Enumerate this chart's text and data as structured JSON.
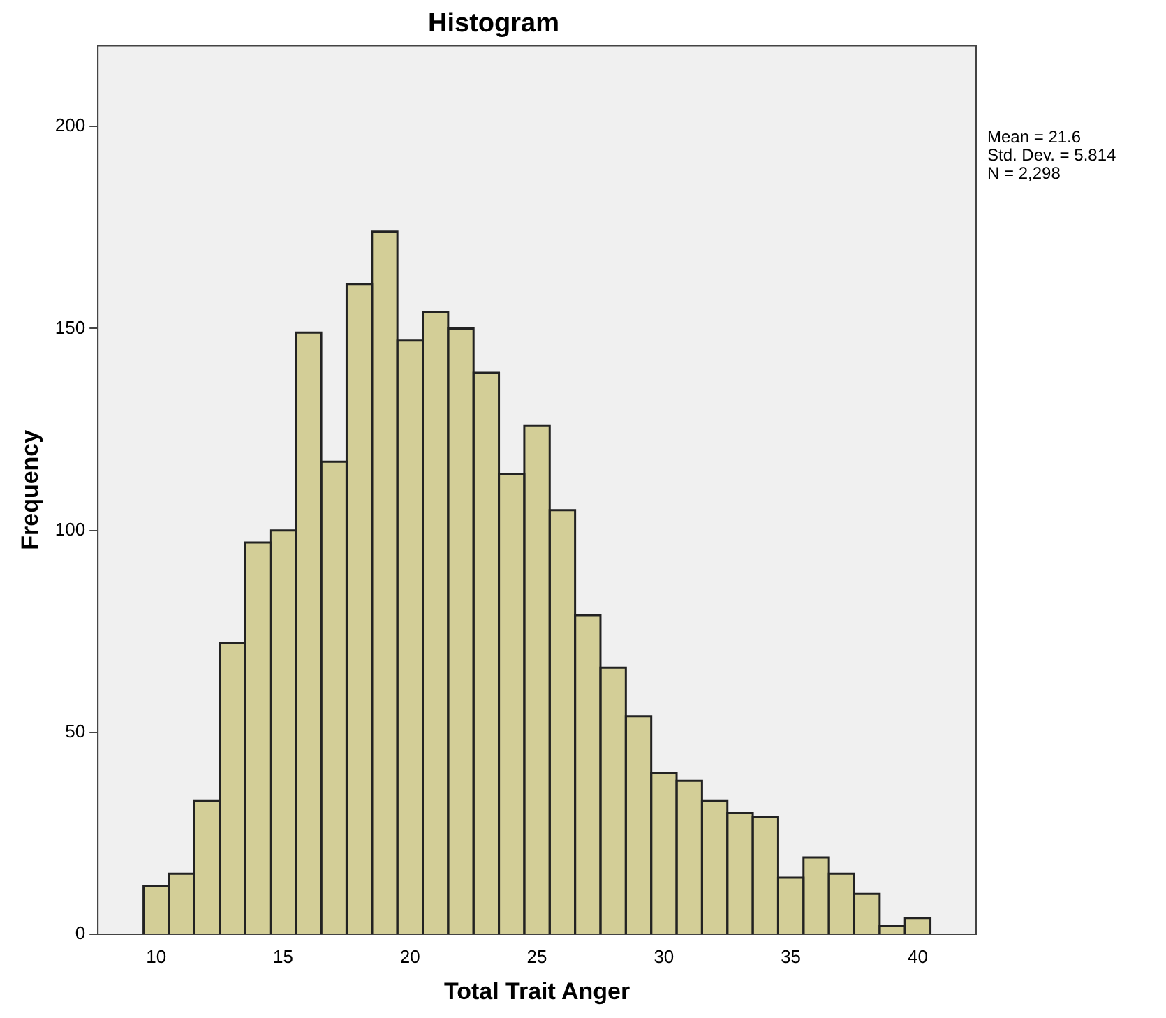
{
  "chart_data": {
    "type": "histogram",
    "title": "Histogram",
    "xlabel": "Total Trait Anger",
    "ylabel": "Frequency",
    "bins": [
      9.5,
      10.5,
      11.5,
      12.5,
      13.5,
      14.5,
      15.5,
      16.5,
      17.5,
      18.5,
      19.5,
      20.5,
      21.5,
      22.5,
      23.5,
      24.5,
      25.5,
      26.5,
      27.5,
      28.5,
      29.5,
      30.5,
      31.5,
      32.5,
      33.5,
      34.5,
      35.5,
      36.5,
      37.5,
      38.5,
      39.5,
      40.5
    ],
    "values": [
      12,
      15,
      33,
      72,
      97,
      100,
      149,
      117,
      161,
      174,
      147,
      154,
      150,
      139,
      114,
      126,
      105,
      79,
      66,
      54,
      40,
      38,
      33,
      30,
      29,
      14,
      19,
      15,
      10,
      2,
      4
    ],
    "color": "#d3ce97",
    "xlim": [
      7.7,
      42.3
    ],
    "xticks": [
      10,
      15,
      20,
      25,
      30,
      35,
      40
    ],
    "ylim": [
      0,
      220
    ],
    "yticks": [
      0,
      50,
      100,
      150,
      200
    ],
    "grid": false,
    "legend": false,
    "annotations": [
      "Mean = 21.6\nStd. Dev. = 5.814\nN = 2,298"
    ]
  }
}
